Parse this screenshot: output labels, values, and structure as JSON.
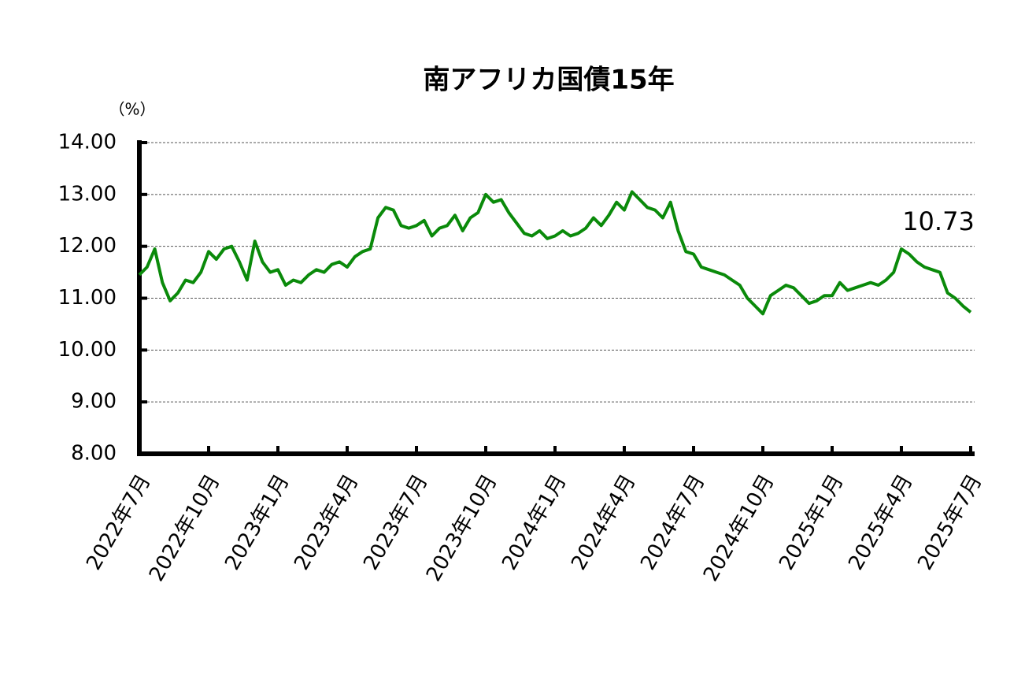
{
  "chart_data": {
    "type": "line",
    "title": "南アフリカ国債15年",
    "y_label": "（%）",
    "categories": [
      "2022年7月",
      null,
      null,
      null,
      null,
      null,
      null,
      null,
      null,
      "2022年10月",
      null,
      null,
      null,
      null,
      null,
      null,
      null,
      null,
      "2023年1月",
      null,
      null,
      null,
      null,
      null,
      null,
      null,
      null,
      "2023年4月",
      null,
      null,
      null,
      null,
      null,
      null,
      null,
      null,
      "2023年7月",
      null,
      null,
      null,
      null,
      null,
      null,
      null,
      null,
      "2023年10月",
      null,
      null,
      null,
      null,
      null,
      null,
      null,
      null,
      "2024年1月",
      null,
      null,
      null,
      null,
      null,
      null,
      null,
      null,
      "2024年4月",
      null,
      null,
      null,
      null,
      null,
      null,
      null,
      null,
      "2024年7月",
      null,
      null,
      null,
      null,
      null,
      null,
      null,
      null,
      "2024年10月",
      null,
      null,
      null,
      null,
      null,
      null,
      null,
      null,
      "2025年1月",
      null,
      null,
      null,
      null,
      null,
      null,
      null,
      null,
      "2025年4月",
      null,
      null,
      null,
      null,
      null,
      null,
      null,
      null,
      "2025年7月"
    ],
    "series": [
      {
        "name": "南アフリカ国債15年",
        "color": "#0a8a0a",
        "values": [
          11.45,
          11.6,
          11.95,
          11.3,
          10.95,
          11.1,
          11.35,
          11.3,
          11.5,
          11.9,
          11.75,
          11.95,
          12.0,
          11.7,
          11.35,
          12.1,
          11.7,
          11.5,
          11.55,
          11.25,
          11.35,
          11.3,
          11.45,
          11.55,
          11.5,
          11.65,
          11.7,
          11.6,
          11.8,
          11.9,
          11.95,
          12.55,
          12.75,
          12.7,
          12.4,
          12.35,
          12.4,
          12.5,
          12.2,
          12.35,
          12.4,
          12.6,
          12.3,
          12.55,
          12.65,
          13.0,
          12.85,
          12.9,
          12.65,
          12.45,
          12.25,
          12.2,
          12.3,
          12.15,
          12.2,
          12.3,
          12.2,
          12.25,
          12.35,
          12.55,
          12.4,
          12.6,
          12.85,
          12.7,
          13.05,
          12.9,
          12.75,
          12.7,
          12.55,
          12.85,
          12.3,
          11.9,
          11.85,
          11.6,
          11.55,
          11.5,
          11.45,
          11.35,
          11.25,
          11.0,
          10.85,
          10.7,
          11.05,
          11.15,
          11.25,
          11.2,
          11.05,
          10.9,
          10.95,
          11.05,
          11.05,
          11.3,
          11.15,
          11.2,
          11.25,
          11.3,
          11.25,
          11.35,
          11.5,
          11.95,
          11.85,
          11.7,
          11.6,
          11.55,
          11.5,
          11.1,
          11.0,
          10.85,
          10.73
        ]
      }
    ],
    "annotations": [
      "10.73"
    ],
    "ylim": [
      8,
      14
    ],
    "yticks": [
      {
        "value": 8,
        "label": "8.00"
      },
      {
        "value": 9,
        "label": "9.00"
      },
      {
        "value": 10,
        "label": "10.00"
      },
      {
        "value": 11,
        "label": "11.00"
      },
      {
        "value": 12,
        "label": "12.00"
      },
      {
        "value": 13,
        "label": "13.00"
      },
      {
        "value": 14,
        "label": "14.00"
      }
    ],
    "grid": true
  }
}
